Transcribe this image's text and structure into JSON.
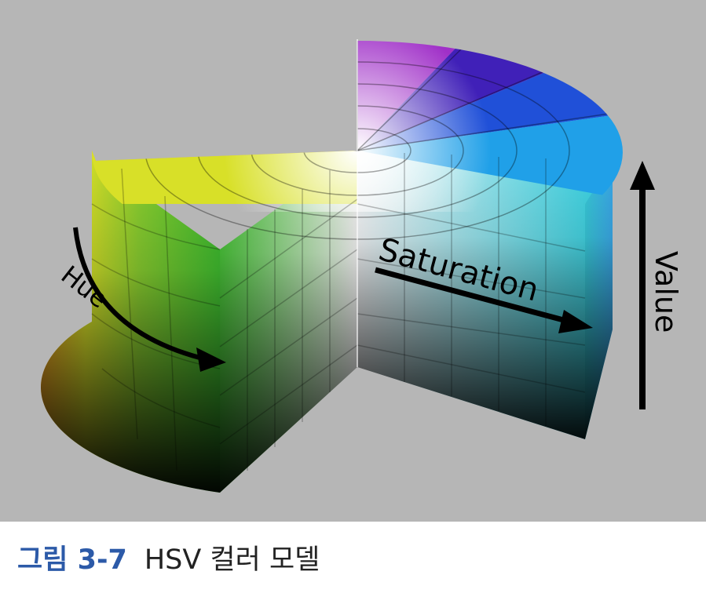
{
  "figure": {
    "labels": {
      "hue": "Hue",
      "saturation": "Saturation",
      "value": "Value"
    },
    "arrow_color": "#000000",
    "background_color": "#b6b6b6"
  },
  "caption": {
    "label": "그림 3-7",
    "title": "HSV 컬러 모델",
    "label_color": "#2c5aa8"
  }
}
